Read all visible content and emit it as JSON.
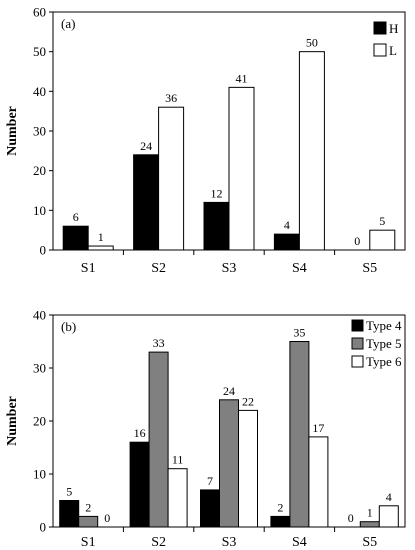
{
  "chart_data": [
    {
      "type": "bar",
      "panel_label": "(a)",
      "ylabel": "Number",
      "ylim": [
        0,
        60
      ],
      "yticks": [
        "0",
        "10",
        "20",
        "30",
        "40",
        "50",
        "60"
      ],
      "categories": [
        "S1",
        "S2",
        "S3",
        "S4",
        "S5"
      ],
      "series": [
        {
          "name": "H",
          "color": "#000000",
          "values": [
            6,
            24,
            12,
            4,
            0
          ]
        },
        {
          "name": "L",
          "color": "#ffffff",
          "values": [
            1,
            36,
            41,
            50,
            5
          ]
        }
      ],
      "legend": "top-right"
    },
    {
      "type": "bar",
      "panel_label": "(b)",
      "ylabel": "Number",
      "ylim": [
        0,
        40
      ],
      "yticks": [
        "0",
        "10",
        "20",
        "30",
        "40"
      ],
      "categories": [
        "S1",
        "S2",
        "S3",
        "S4",
        "S5"
      ],
      "series": [
        {
          "name": "Type 4",
          "color": "#000000",
          "values": [
            5,
            16,
            7,
            2,
            0
          ]
        },
        {
          "name": "Type 5",
          "color": "#808080",
          "values": [
            2,
            33,
            24,
            35,
            1
          ]
        },
        {
          "name": "Type 6",
          "color": "#ffffff",
          "values": [
            0,
            11,
            22,
            17,
            4
          ]
        }
      ],
      "legend": "top-right"
    }
  ]
}
